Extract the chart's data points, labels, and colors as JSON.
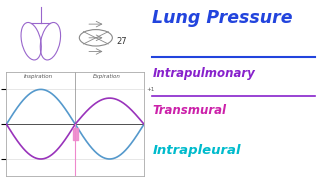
{
  "bg_color": "#ffffff",
  "title": "Lung Pressure",
  "subtitle1": "Intrapulmonary",
  "subtitle2": "Transmural",
  "subtitle3": "Intrapleural",
  "title_color": "#2244dd",
  "subtitle1_color": "#8822cc",
  "subtitle2_color": "#cc22aa",
  "subtitle3_color": "#00bbcc",
  "blue_curve_color": "#5599cc",
  "purple_curve_color": "#9933bb",
  "pink_line_color": "#ee88cc",
  "axis_color": "#aaaaaa",
  "inspiration_label": "Inspiration",
  "expiration_label": "Expiration",
  "grid_color": "#dddddd",
  "text_color": "#555555"
}
